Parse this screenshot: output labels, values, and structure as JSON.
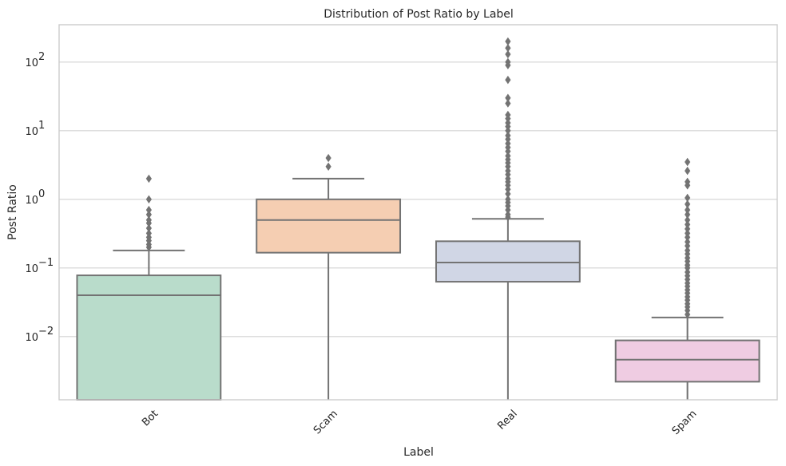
{
  "chart_data": {
    "type": "box",
    "title": "Distribution of Post Ratio by Label",
    "xlabel": "Label",
    "ylabel": "Post Ratio",
    "yscale": "log",
    "ylim": [
      0.0012,
      350
    ],
    "grid": true,
    "yticks": [
      {
        "value": 0.01,
        "base": "10",
        "exp": "−2"
      },
      {
        "value": 0.1,
        "base": "10",
        "exp": "−1"
      },
      {
        "value": 1,
        "base": "10",
        "exp": "0"
      },
      {
        "value": 10,
        "base": "10",
        "exp": "1"
      },
      {
        "value": 100,
        "base": "10",
        "exp": "2"
      }
    ],
    "categories": [
      "Bot",
      "Scam",
      "Real",
      "Spam"
    ],
    "series": [
      {
        "category": "Bot",
        "color": "#b9dccb",
        "whisker_low": 0.0012,
        "q1": 0.0012,
        "median": 0.04,
        "q3": 0.078,
        "whisker_high": 0.18,
        "outliers": [
          0.2,
          0.22,
          0.25,
          0.28,
          0.32,
          0.38,
          0.45,
          0.5,
          0.6,
          0.7,
          1.0,
          2.0
        ]
      },
      {
        "category": "Scam",
        "color": "#f5ceb2",
        "whisker_low": 0.0012,
        "q1": 0.167,
        "median": 0.5,
        "q3": 1.0,
        "whisker_high": 2.0,
        "outliers": [
          3.0,
          4.0
        ]
      },
      {
        "category": "Real",
        "color": "#d0d6e5",
        "whisker_low": 0.0012,
        "q1": 0.063,
        "median": 0.12,
        "q3": 0.245,
        "whisker_high": 0.52,
        "outliers": [
          0.55,
          0.6,
          0.7,
          0.8,
          0.9,
          1.0,
          1.2,
          1.4,
          1.6,
          1.8,
          2.0,
          2.3,
          2.6,
          3.0,
          3.4,
          3.8,
          4.3,
          5.0,
          5.7,
          6.5,
          7.5,
          8.5,
          10,
          11.5,
          13,
          15,
          17,
          25,
          30,
          55,
          90,
          100,
          130,
          160,
          200
        ]
      },
      {
        "category": "Spam",
        "color": "#efcce2",
        "whisker_low": 0.0012,
        "q1": 0.0022,
        "median": 0.0046,
        "q3": 0.0088,
        "whisker_high": 0.019,
        "outliers": [
          0.021,
          0.024,
          0.027,
          0.03,
          0.034,
          0.038,
          0.043,
          0.048,
          0.054,
          0.06,
          0.068,
          0.077,
          0.087,
          0.1,
          0.11,
          0.125,
          0.14,
          0.16,
          0.18,
          0.21,
          0.24,
          0.28,
          0.32,
          0.37,
          0.43,
          0.5,
          0.6,
          0.7,
          0.85,
          1.05,
          1.6,
          1.8,
          2.6,
          3.5
        ]
      }
    ]
  }
}
